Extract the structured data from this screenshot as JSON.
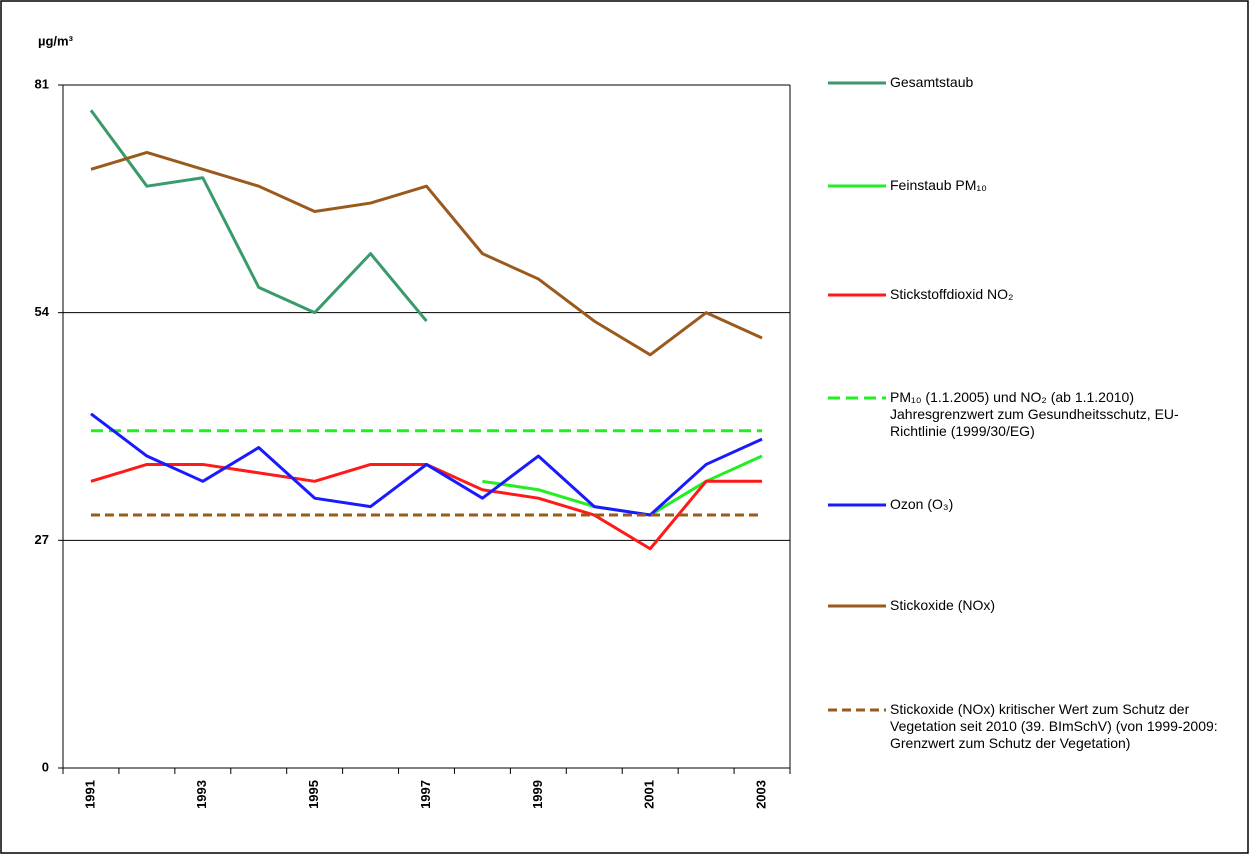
{
  "chart_data": {
    "type": "line",
    "y_label": "µg/m³",
    "categories": [
      "1991",
      null,
      "1993",
      null,
      "1995",
      null,
      "1997",
      null,
      "1999",
      null,
      "2001",
      null,
      "2003"
    ],
    "ylim": [
      0,
      81
    ],
    "yticks": [
      0,
      27,
      54,
      81
    ],
    "grid": true,
    "legend": "right",
    "series": [
      {
        "name": "Gesamtstaub",
        "color": "#3a9a6a",
        "dashed": false,
        "values": [
          78,
          69,
          70,
          57,
          54,
          61,
          53,
          null,
          null,
          null,
          null,
          null,
          null
        ]
      },
      {
        "name": "Feinstaub PM₁₀",
        "color": "#22ee22",
        "dashed": false,
        "values": [
          null,
          null,
          null,
          null,
          null,
          null,
          null,
          34,
          33,
          31,
          30,
          34,
          37
        ]
      },
      {
        "name": "Stickstoffdioxid NO₂",
        "color": "#ff1a1a",
        "dashed": false,
        "values": [
          34,
          36,
          36,
          35,
          34,
          36,
          36,
          33,
          32,
          30,
          26,
          34,
          34
        ]
      },
      {
        "name": "PM₁₀ (1.1.2005) und NO₂ (ab 1.1.2010) Jahresgrenzwert zum Gesundheitsschutz, EU-Richtlinie (1999/30/EG)",
        "color": "#22ee22",
        "dashed": true,
        "values": [
          40,
          40,
          40,
          40,
          40,
          40,
          40,
          40,
          40,
          40,
          40,
          40,
          40
        ]
      },
      {
        "name": "Ozon (O₃)",
        "color": "#1a1aff",
        "dashed": false,
        "values": [
          42,
          37,
          34,
          38,
          32,
          31,
          36,
          32,
          37,
          31,
          30,
          36,
          39
        ]
      },
      {
        "name": "Stickoxide (NOx)",
        "color": "#9a5a1e",
        "dashed": false,
        "values": [
          71,
          73,
          71,
          69,
          66,
          67,
          69,
          61,
          58,
          53,
          49,
          54,
          51
        ]
      },
      {
        "name": "Stickoxide (NOx) kritischer Wert zum Schutz der Vegetation seit 2010 (39. BImSchV) (von 1999-2009: Grenzwert zum Schutz der Vegetation)",
        "color": "#9a5a1e",
        "dashed": true,
        "values": [
          30,
          30,
          30,
          30,
          30,
          30,
          30,
          30,
          30,
          30,
          30,
          30,
          30
        ]
      }
    ]
  }
}
